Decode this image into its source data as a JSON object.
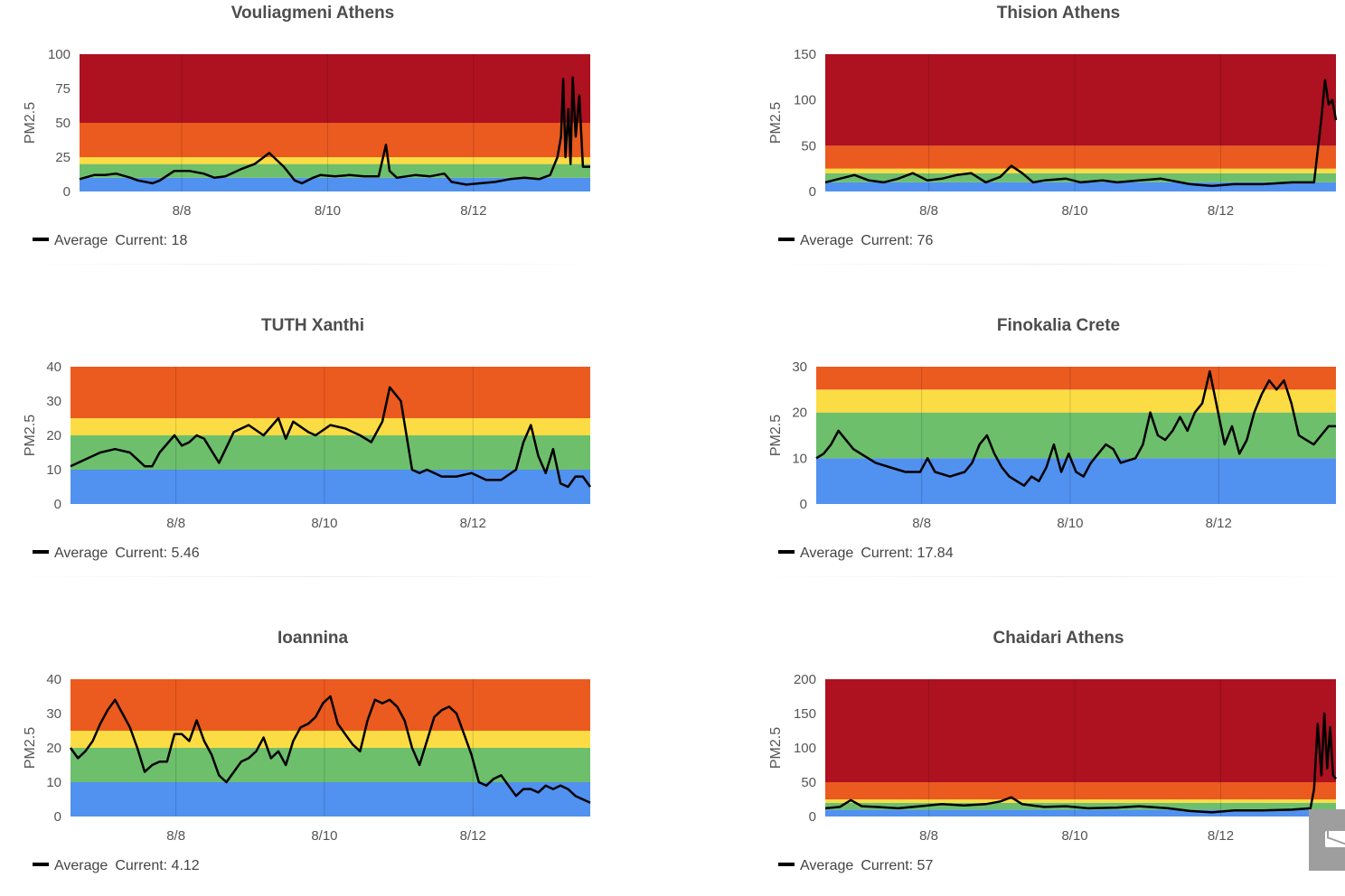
{
  "colors": {
    "blue": "#5191ef",
    "green": "#6dbf6c",
    "yellow": "#fcdc44",
    "orange": "#eb5a1f",
    "red": "#ae1120",
    "line": "#000000"
  },
  "chart_data": [
    {
      "type": "line",
      "title": "Vouliagmeni Athens",
      "ylabel": "PM2.5",
      "ylim": [
        0,
        100
      ],
      "yticks": [
        0,
        25,
        50,
        75,
        100
      ],
      "x_range": [
        0,
        7
      ],
      "xticks": [
        {
          "x": 1.4,
          "label": "8/8"
        },
        {
          "x": 3.4,
          "label": "8/10"
        },
        {
          "x": 5.4,
          "label": "8/12"
        }
      ],
      "bands": [
        {
          "from": 0,
          "to": 10,
          "color": "blue"
        },
        {
          "from": 10,
          "to": 20,
          "color": "green"
        },
        {
          "from": 20,
          "to": 25,
          "color": "yellow"
        },
        {
          "from": 25,
          "to": 50,
          "color": "orange"
        },
        {
          "from": 50,
          "to": 100,
          "color": "red"
        }
      ],
      "legend": {
        "series": "Average",
        "current_label": "Current:",
        "current": "18"
      },
      "series": [
        {
          "x": [
            0,
            0.2,
            0.35,
            0.5,
            0.7,
            0.8,
            1,
            1.1,
            1.3,
            1.5,
            1.7,
            1.85,
            2,
            2.2,
            2.4,
            2.6,
            2.8,
            2.95,
            3.05,
            3.2,
            3.3,
            3.5,
            3.7,
            3.9,
            4.1,
            4.2,
            4.25,
            4.35,
            4.6,
            4.8,
            5,
            5.1,
            5.3,
            5.5,
            5.7,
            5.9,
            6.1,
            6.3,
            6.45,
            6.55,
            6.6,
            6.63,
            6.66,
            6.7,
            6.73,
            6.76,
            6.8,
            6.85,
            6.9,
            7
          ],
          "y": [
            9,
            12,
            12,
            13,
            10,
            8,
            6,
            8,
            15,
            15,
            13,
            10,
            11,
            16,
            20,
            28,
            18,
            8,
            6,
            10,
            12,
            11,
            12,
            11,
            11,
            34,
            15,
            10,
            12,
            11,
            13,
            7,
            5,
            6,
            7,
            9,
            10,
            9,
            12,
            25,
            40,
            82,
            25,
            60,
            20,
            83,
            40,
            70,
            18,
            18
          ]
        }
      ]
    },
    {
      "type": "line",
      "title": "Thision Athens",
      "ylabel": "PM2.5",
      "ylim": [
        0,
        150
      ],
      "yticks": [
        0,
        50,
        100,
        150
      ],
      "x_range": [
        0,
        7
      ],
      "xticks": [
        {
          "x": 1.42,
          "label": "8/8"
        },
        {
          "x": 3.42,
          "label": "8/10"
        },
        {
          "x": 5.42,
          "label": "8/12"
        }
      ],
      "bands": [
        {
          "from": 0,
          "to": 10,
          "color": "blue"
        },
        {
          "from": 10,
          "to": 20,
          "color": "green"
        },
        {
          "from": 20,
          "to": 25,
          "color": "yellow"
        },
        {
          "from": 25,
          "to": 50,
          "color": "orange"
        },
        {
          "from": 50,
          "to": 150,
          "color": "red"
        }
      ],
      "legend": {
        "series": "Average",
        "current_label": "Current:",
        "current": "76"
      },
      "series": [
        {
          "x": [
            0,
            0.2,
            0.4,
            0.6,
            0.8,
            1,
            1.2,
            1.4,
            1.6,
            1.8,
            2,
            2.2,
            2.4,
            2.55,
            2.7,
            2.85,
            3,
            3.3,
            3.5,
            3.8,
            4,
            4.3,
            4.6,
            5,
            5.3,
            5.6,
            6,
            6.4,
            6.7,
            6.8,
            6.85,
            6.9,
            6.95,
            7
          ],
          "y": [
            10,
            14,
            18,
            12,
            10,
            14,
            20,
            12,
            14,
            18,
            20,
            10,
            16,
            28,
            20,
            10,
            12,
            14,
            10,
            12,
            10,
            12,
            14,
            8,
            6,
            8,
            8,
            10,
            10,
            80,
            122,
            95,
            100,
            78
          ]
        }
      ]
    },
    {
      "type": "line",
      "title": "TUTH Xanthi",
      "ylabel": "PM2.5",
      "ylim": [
        0,
        40
      ],
      "yticks": [
        0,
        10,
        20,
        30,
        40
      ],
      "x_range": [
        0,
        7
      ],
      "xticks": [
        {
          "x": 1.42,
          "label": "8/8"
        },
        {
          "x": 3.42,
          "label": "8/10"
        },
        {
          "x": 5.42,
          "label": "8/12"
        }
      ],
      "bands": [
        {
          "from": 0,
          "to": 10,
          "color": "blue"
        },
        {
          "from": 10,
          "to": 20,
          "color": "green"
        },
        {
          "from": 20,
          "to": 25,
          "color": "yellow"
        },
        {
          "from": 25,
          "to": 40,
          "color": "orange"
        }
      ],
      "legend": {
        "series": "Average",
        "current_label": "Current:",
        "current": "5.46"
      },
      "series": [
        {
          "x": [
            0,
            0.2,
            0.4,
            0.6,
            0.8,
            0.9,
            1,
            1.1,
            1.2,
            1.4,
            1.5,
            1.6,
            1.7,
            1.8,
            2,
            2.2,
            2.4,
            2.6,
            2.8,
            2.9,
            3,
            3.2,
            3.3,
            3.5,
            3.7,
            3.9,
            4.05,
            4.2,
            4.3,
            4.45,
            4.6,
            4.7,
            4.8,
            4.9,
            5,
            5.2,
            5.4,
            5.6,
            5.8,
            6,
            6.1,
            6.2,
            6.3,
            6.4,
            6.5,
            6.6,
            6.7,
            6.8,
            6.9,
            7
          ],
          "y": [
            11,
            13,
            15,
            16,
            15,
            13,
            11,
            11,
            15,
            20,
            17,
            18,
            20,
            19,
            12,
            21,
            23,
            20,
            25,
            19,
            24,
            21,
            20,
            23,
            22,
            20,
            18,
            24,
            34,
            30,
            10,
            9,
            10,
            9,
            8,
            8,
            9,
            7,
            7,
            10,
            18,
            23,
            14,
            9,
            16,
            6,
            5,
            8,
            8,
            5
          ]
        }
      ]
    },
    {
      "type": "line",
      "title": "Finokalia Crete",
      "ylabel": "PM2.5",
      "ylim": [
        0,
        30
      ],
      "yticks": [
        0,
        10,
        20,
        30
      ],
      "x_range": [
        0,
        7
      ],
      "xticks": [
        {
          "x": 1.42,
          "label": "8/8"
        },
        {
          "x": 3.42,
          "label": "8/10"
        },
        {
          "x": 5.42,
          "label": "8/12"
        }
      ],
      "bands": [
        {
          "from": 0,
          "to": 10,
          "color": "blue"
        },
        {
          "from": 10,
          "to": 20,
          "color": "green"
        },
        {
          "from": 20,
          "to": 25,
          "color": "yellow"
        },
        {
          "from": 25,
          "to": 30,
          "color": "orange"
        }
      ],
      "legend": {
        "series": "Average",
        "current_label": "Current:",
        "current": "17.84"
      },
      "series": [
        {
          "x": [
            0,
            0.1,
            0.2,
            0.3,
            0.4,
            0.5,
            0.6,
            0.8,
            1,
            1.2,
            1.4,
            1.5,
            1.6,
            1.8,
            2,
            2.1,
            2.2,
            2.3,
            2.4,
            2.5,
            2.6,
            2.7,
            2.8,
            2.9,
            3,
            3.1,
            3.2,
            3.3,
            3.4,
            3.5,
            3.6,
            3.7,
            3.8,
            3.9,
            4,
            4.1,
            4.3,
            4.4,
            4.5,
            4.6,
            4.7,
            4.8,
            4.9,
            5,
            5.1,
            5.2,
            5.3,
            5.4,
            5.5,
            5.6,
            5.7,
            5.8,
            5.9,
            6,
            6.1,
            6.2,
            6.3,
            6.4,
            6.5,
            6.6,
            6.7,
            6.8,
            6.9,
            7
          ],
          "y": [
            10,
            11,
            13,
            16,
            14,
            12,
            11,
            9,
            8,
            7,
            7,
            10,
            7,
            6,
            7,
            9,
            13,
            15,
            11,
            8,
            6,
            5,
            4,
            6,
            5,
            8,
            13,
            7,
            11,
            7,
            6,
            9,
            11,
            13,
            12,
            9,
            10,
            13,
            20,
            15,
            14,
            16,
            19,
            16,
            20,
            22,
            29,
            21,
            13,
            17,
            11,
            14,
            20,
            24,
            27,
            25,
            27,
            22,
            15,
            14,
            13,
            15,
            17,
            17
          ]
        }
      ]
    },
    {
      "type": "line",
      "title": "Ioannina",
      "ylabel": "PM2.5",
      "ylim": [
        0,
        40
      ],
      "yticks": [
        0,
        10,
        20,
        30,
        40
      ],
      "x_range": [
        0,
        7
      ],
      "xticks": [
        {
          "x": 1.42,
          "label": "8/8"
        },
        {
          "x": 3.42,
          "label": "8/10"
        },
        {
          "x": 5.42,
          "label": "8/12"
        }
      ],
      "bands": [
        {
          "from": 0,
          "to": 10,
          "color": "blue"
        },
        {
          "from": 10,
          "to": 20,
          "color": "green"
        },
        {
          "from": 20,
          "to": 25,
          "color": "yellow"
        },
        {
          "from": 25,
          "to": 40,
          "color": "orange"
        }
      ],
      "legend": {
        "series": "Average",
        "current_label": "Current:",
        "current": "4.12"
      },
      "series": [
        {
          "x": [
            0,
            0.1,
            0.2,
            0.3,
            0.4,
            0.5,
            0.6,
            0.7,
            0.8,
            0.9,
            1,
            1.1,
            1.2,
            1.3,
            1.4,
            1.5,
            1.6,
            1.7,
            1.8,
            1.9,
            2,
            2.1,
            2.2,
            2.3,
            2.4,
            2.5,
            2.6,
            2.7,
            2.8,
            2.9,
            3,
            3.1,
            3.2,
            3.3,
            3.4,
            3.5,
            3.6,
            3.7,
            3.8,
            3.9,
            4,
            4.1,
            4.2,
            4.3,
            4.4,
            4.5,
            4.6,
            4.7,
            4.8,
            4.9,
            5,
            5.1,
            5.2,
            5.3,
            5.4,
            5.5,
            5.6,
            5.7,
            5.8,
            5.9,
            6,
            6.1,
            6.2,
            6.3,
            6.4,
            6.5,
            6.6,
            6.7,
            6.8,
            6.9,
            7
          ],
          "y": [
            20,
            17,
            19,
            22,
            27,
            31,
            34,
            30,
            26,
            20,
            13,
            15,
            16,
            16,
            24,
            24,
            22,
            28,
            22,
            18,
            12,
            10,
            13,
            16,
            17,
            19,
            23,
            17,
            19,
            15,
            22,
            26,
            27,
            29,
            33,
            35,
            27,
            24,
            21,
            19,
            28,
            34,
            33,
            34,
            32,
            28,
            20,
            15,
            22,
            29,
            31,
            32,
            30,
            24,
            18,
            10,
            9,
            11,
            12,
            9,
            6,
            8,
            8,
            7,
            9,
            8,
            9,
            8,
            6,
            5,
            4
          ]
        }
      ]
    },
    {
      "type": "line",
      "title": "Chaidari Athens",
      "ylabel": "PM2.5",
      "ylim": [
        0,
        200
      ],
      "yticks": [
        0,
        50,
        100,
        150,
        200
      ],
      "x_range": [
        0,
        7
      ],
      "xticks": [
        {
          "x": 1.42,
          "label": "8/8"
        },
        {
          "x": 3.42,
          "label": "8/10"
        },
        {
          "x": 5.42,
          "label": "8/12"
        }
      ],
      "bands": [
        {
          "from": 0,
          "to": 10,
          "color": "blue"
        },
        {
          "from": 10,
          "to": 20,
          "color": "green"
        },
        {
          "from": 20,
          "to": 25,
          "color": "yellow"
        },
        {
          "from": 25,
          "to": 50,
          "color": "orange"
        },
        {
          "from": 50,
          "to": 200,
          "color": "red"
        }
      ],
      "legend": {
        "series": "Average",
        "current_label": "Current:",
        "current": "57"
      },
      "series": [
        {
          "x": [
            0,
            0.2,
            0.35,
            0.5,
            0.7,
            1,
            1.3,
            1.6,
            1.9,
            2.2,
            2.4,
            2.55,
            2.7,
            3,
            3.3,
            3.6,
            4,
            4.3,
            4.7,
            5,
            5.3,
            5.6,
            6,
            6.4,
            6.65,
            6.7,
            6.75,
            6.8,
            6.84,
            6.88,
            6.92,
            6.96,
            7
          ],
          "y": [
            12,
            14,
            24,
            15,
            14,
            12,
            15,
            18,
            16,
            18,
            22,
            28,
            18,
            14,
            15,
            12,
            13,
            15,
            12,
            8,
            6,
            9,
            9,
            10,
            12,
            40,
            135,
            60,
            150,
            70,
            130,
            60,
            55
          ]
        }
      ]
    }
  ],
  "mail_button": {
    "icon": "envelope-icon"
  }
}
